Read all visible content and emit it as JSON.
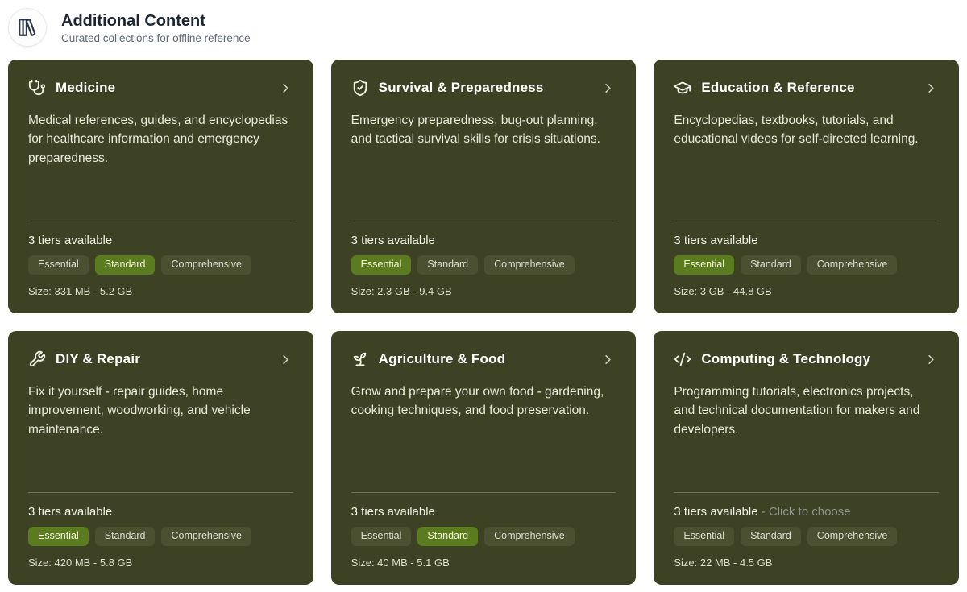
{
  "header": {
    "title": "Additional Content",
    "subtitle": "Curated collections for offline reference",
    "icon": "library-icon"
  },
  "cards": [
    {
      "icon": "stethoscope-icon",
      "title": "Medicine",
      "description": "Medical references, guides, and encyclopedias for healthcare information and emergency preparedness.",
      "tiers_available": "3 tiers available",
      "hint": "",
      "tiers": [
        "Essential",
        "Standard",
        "Comprehensive"
      ],
      "selected_tier": "Standard",
      "size": "Size: 331 MB - 5.2 GB"
    },
    {
      "icon": "shield-check-icon",
      "title": "Survival & Preparedness",
      "description": "Emergency preparedness, bug-out planning, and tactical survival skills for crisis situations.",
      "tiers_available": "3 tiers available",
      "hint": "",
      "tiers": [
        "Essential",
        "Standard",
        "Comprehensive"
      ],
      "selected_tier": "Essential",
      "size": "Size: 2.3 GB - 9.4 GB"
    },
    {
      "icon": "graduation-cap-icon",
      "title": "Education & Reference",
      "description": "Encyclopedias, textbooks, tutorials, and educational videos for self-directed learning.",
      "tiers_available": "3 tiers available",
      "hint": "",
      "tiers": [
        "Essential",
        "Standard",
        "Comprehensive"
      ],
      "selected_tier": "Essential",
      "size": "Size: 3 GB - 44.8 GB"
    },
    {
      "icon": "wrench-icon",
      "title": "DIY & Repair",
      "description": "Fix it yourself - repair guides, home improvement, woodworking, and vehicle maintenance.",
      "tiers_available": "3 tiers available",
      "hint": "",
      "tiers": [
        "Essential",
        "Standard",
        "Comprehensive"
      ],
      "selected_tier": "Essential",
      "size": "Size: 420 MB - 5.8 GB"
    },
    {
      "icon": "sprout-icon",
      "title": "Agriculture & Food",
      "description": "Grow and prepare your own food - gardening, cooking techniques, and food preservation.",
      "tiers_available": "3 tiers available",
      "hint": "",
      "tiers": [
        "Essential",
        "Standard",
        "Comprehensive"
      ],
      "selected_tier": "Standard",
      "size": "Size: 40 MB - 5.1 GB"
    },
    {
      "icon": "code-icon",
      "title": "Computing & Technology",
      "description": "Programming tutorials, electronics projects, and technical documentation for makers and developers.",
      "tiers_available": "3 tiers available",
      "hint": "- Click to choose",
      "tiers": [
        "Essential",
        "Standard",
        "Comprehensive"
      ],
      "selected_tier": "",
      "size": "Size: 22 MB - 4.5 GB"
    }
  ],
  "colors": {
    "card_background": "#3d4224",
    "selected_tier_background": "#5b7c1e",
    "tier_background": "#4b5031"
  }
}
